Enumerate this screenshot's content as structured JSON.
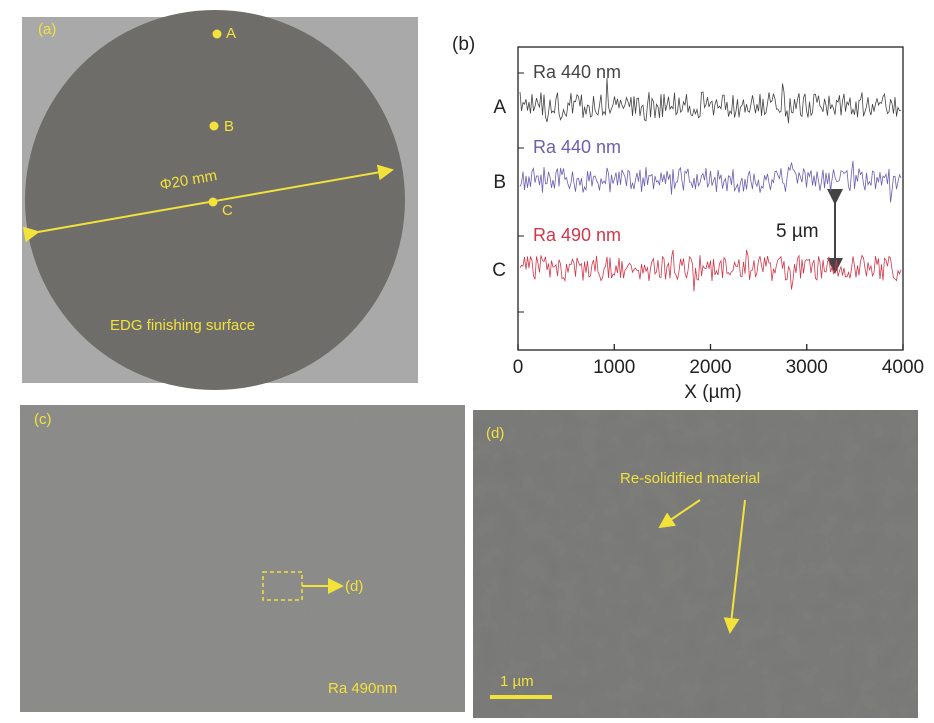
{
  "panel_a": {
    "label": "(a)",
    "points": [
      "A",
      "B",
      "C"
    ],
    "diameter": "Φ20 mm",
    "caption": "EDG finishing surface"
  },
  "chart_data": {
    "type": "profile",
    "label": "(b)",
    "xlabel": "X (µm)",
    "xlim": [
      0,
      4000
    ],
    "xticks": [
      0,
      1000,
      2000,
      3000,
      4000
    ],
    "series": [
      {
        "name": "A",
        "label": "Ra 440 nm",
        "color": "#444444"
      },
      {
        "name": "B",
        "label": "Ra 440 nm",
        "color": "#6a5fb0"
      },
      {
        "name": "C",
        "label": "Ra 490 nm",
        "color": "#d2374a"
      }
    ],
    "scale_label": "5 µm"
  },
  "panel_c": {
    "label": "(c)",
    "target": "(d)",
    "caption": "Ra 490nm"
  },
  "panel_d": {
    "label": "(d)",
    "annotation": "Re-solidified material",
    "scale_bar": "1 µm"
  }
}
